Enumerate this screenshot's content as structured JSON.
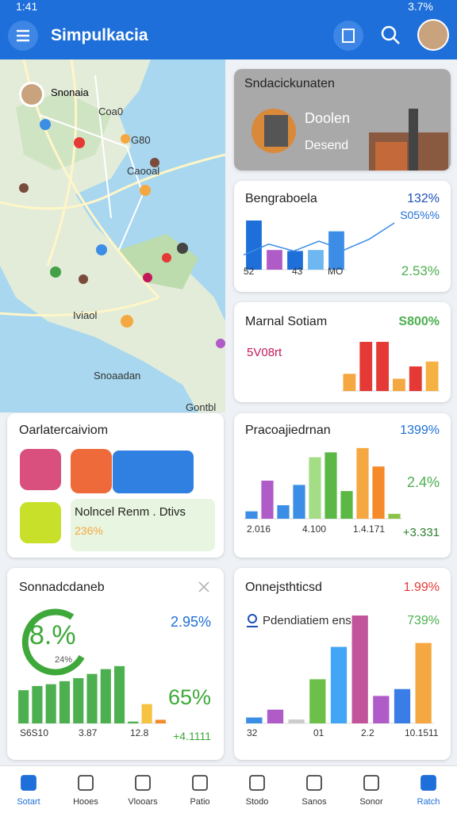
{
  "status": {
    "time": "1:41",
    "battery": "3.7%"
  },
  "app_bar": {
    "title": "Simpulkacia"
  },
  "map": {
    "user": "Snonaia",
    "labels": [
      "Coa0",
      "G80",
      "Caooal",
      "Iviaol",
      "Snoaadan",
      "Gontbl"
    ]
  },
  "promo": {
    "title": "Sndacickunaten",
    "lines": [
      "Doolen",
      "Desend"
    ]
  },
  "cards": [
    {
      "title": "Bengraboela",
      "value": "132%",
      "sub": "S05%%",
      "foot": "2.53%",
      "x_labels": [
        "52",
        "43",
        "MO"
      ],
      "bars": [
        100,
        40,
        38,
        40,
        78
      ],
      "colors": [
        "#1e6fd9",
        "#b05cc8",
        "#1e6fd9",
        "#6fb7f0",
        "#3b8de6"
      ],
      "line": [
        30,
        52,
        38,
        58,
        40,
        62,
        95
      ]
    },
    {
      "title": "Marnal Sotiam",
      "value": "S800%",
      "sub": "5V08rt",
      "bars": [
        35,
        100,
        100,
        25,
        50,
        60
      ],
      "colors": [
        "#f5a742",
        "#e53935",
        "#e53935",
        "#f5a742",
        "#e53935",
        "#f5b142"
      ]
    },
    {
      "title": "Oarlatercaiviom",
      "note": "Nolncel Renm . Dtivs",
      "note_value": "236%"
    },
    {
      "title": "Pracoajiedrnan",
      "value": "1399%",
      "sub": "2.4%",
      "foot": "+3.331",
      "x_labels": [
        "2.016",
        "4.100",
        "1.4.171"
      ],
      "bars": [
        12,
        62,
        22,
        55,
        100,
        108,
        45,
        115,
        85,
        8
      ],
      "colors": [
        "#3b8de6",
        "#b05cc8",
        "#3b8de6",
        "#3b8de6",
        "#a5dc86",
        "#5bb845",
        "#5bb845",
        "#f5a742",
        "#f58a2a",
        "#8bc34a"
      ]
    },
    {
      "title": "Sonnadcdaneb",
      "gauge": "8.%",
      "gauge_sub": "24%",
      "value": "2.95%",
      "sub": "65%",
      "foot": "+4.1111",
      "x_labels": [
        "S6S10",
        "3.87",
        "12.8"
      ],
      "bars": [
        55,
        62,
        65,
        70,
        75,
        82,
        90,
        95,
        3,
        32,
        6
      ],
      "colors": [
        "#4caf50",
        "#4caf50",
        "#4caf50",
        "#4caf50",
        "#4caf50",
        "#4caf50",
        "#4caf50",
        "#4caf50",
        "#4caf50",
        "#f5c242",
        "#f58a2a"
      ]
    },
    {
      "title": "Onnejsthticsd",
      "value": "1.99%",
      "sub": "Pdendiatiem ense",
      "foot": "739%",
      "x_labels": [
        "32",
        "01",
        "2.2",
        "10.1511"
      ],
      "bars": [
        6,
        14,
        4,
        45,
        78,
        110,
        28,
        35,
        82
      ],
      "colors": [
        "#3b8de6",
        "#b05cc8",
        "#cccccc",
        "#6cc04a",
        "#42a5f5",
        "#c2549c",
        "#b05cc8",
        "#3b7de6",
        "#f5a742"
      ]
    }
  ],
  "nav": [
    "Sotart",
    "Hooes",
    "Vlooars",
    "Patio",
    "Stodo",
    "Sanos",
    "Sonor",
    "Ratch"
  ]
}
